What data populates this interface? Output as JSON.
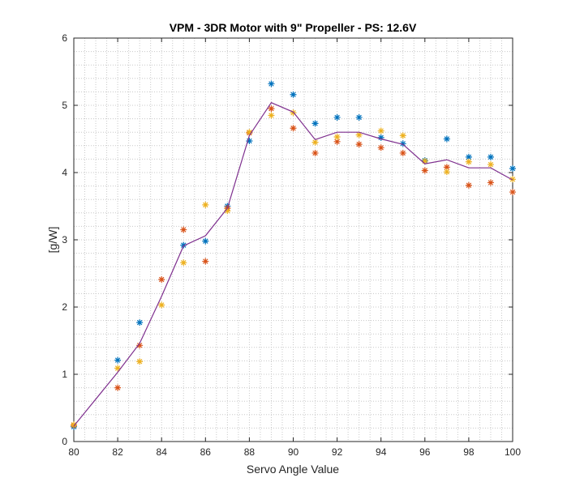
{
  "chart_data": {
    "type": "scatter",
    "title": "VPM - 3DR Motor with 9\" Propeller - PS: 12.6V",
    "xlabel": "Servo Angle Value",
    "ylabel": "[g/W]",
    "xlim": [
      80,
      100
    ],
    "ylim": [
      0,
      6
    ],
    "xticks": [
      80,
      82,
      84,
      86,
      88,
      90,
      92,
      94,
      96,
      98,
      100
    ],
    "yticks": [
      0,
      1,
      2,
      3,
      4,
      5,
      6
    ],
    "grid": "minor-dotted",
    "box": true,
    "series": [
      {
        "marker": "star",
        "color": "#0072BD",
        "x": [
          80,
          82,
          83,
          85,
          86,
          87,
          88,
          89,
          90,
          91,
          92,
          93,
          94,
          95,
          96,
          97,
          98,
          99,
          100
        ],
        "y": [
          0.22,
          1.21,
          1.77,
          2.92,
          2.98,
          3.5,
          4.47,
          5.32,
          5.16,
          4.73,
          4.82,
          4.82,
          4.52,
          4.43,
          4.18,
          4.5,
          4.23,
          4.23,
          4.06
        ]
      },
      {
        "marker": "star",
        "color": "#D95319",
        "x": [
          80,
          82,
          83,
          84,
          85,
          86,
          87,
          88,
          89,
          90,
          91,
          92,
          93,
          94,
          95,
          96,
          97,
          98,
          99,
          100
        ],
        "y": [
          0.24,
          0.8,
          1.43,
          2.41,
          3.15,
          2.68,
          3.47,
          4.59,
          4.95,
          4.66,
          4.29,
          4.46,
          4.42,
          4.37,
          4.29,
          4.03,
          4.08,
          3.81,
          3.85,
          3.71
        ]
      },
      {
        "marker": "star",
        "color": "#EDB120",
        "x": [
          80,
          82,
          83,
          84,
          85,
          86,
          87,
          88,
          89,
          90,
          91,
          92,
          93,
          94,
          95,
          96,
          97,
          98,
          99,
          100
        ],
        "y": [
          0.25,
          1.09,
          1.19,
          2.03,
          2.66,
          3.52,
          3.43,
          4.6,
          4.85,
          4.89,
          4.45,
          4.53,
          4.56,
          4.62,
          4.55,
          4.17,
          4.01,
          4.16,
          4.12,
          3.9
        ]
      },
      {
        "marker": "line",
        "color": "#7E2F8E",
        "x": [
          80,
          82,
          83,
          84,
          85,
          86,
          87,
          88,
          89,
          90,
          91,
          92,
          93,
          94,
          95,
          96,
          97,
          98,
          99,
          100
        ],
        "y": [
          0.23,
          1.03,
          1.46,
          2.16,
          2.91,
          3.06,
          3.47,
          4.55,
          5.04,
          4.9,
          4.49,
          4.6,
          4.6,
          4.5,
          4.42,
          4.13,
          4.19,
          4.07,
          4.07,
          3.89
        ]
      }
    ]
  }
}
